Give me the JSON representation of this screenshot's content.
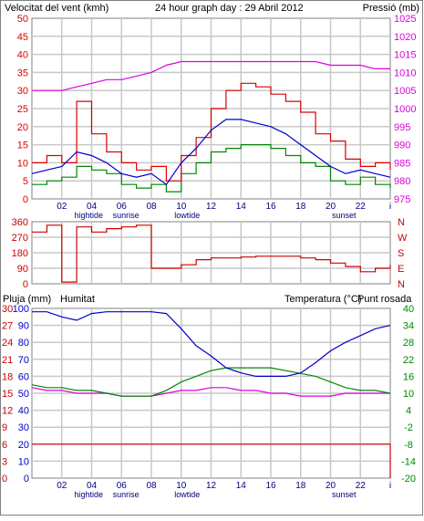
{
  "colors": {
    "wind": "#dd0000",
    "wind_avg": "#0000cc",
    "wind_min": "#008800",
    "pressure": "#dd00dd",
    "direction": "#cc0000",
    "humidity": "#0000cc",
    "temperature": "#008800",
    "dewpoint": "#dd00dd",
    "rain": "#cc0000",
    "grid": "#c8c8c8",
    "frame": "#808080"
  },
  "chart_data": [
    {
      "type": "line",
      "title": "24 hour graph day : 29 Abril 2012",
      "left_axis_label": "Velocitat del vent (kmh)",
      "right_axis_label": "Pressió (mb)",
      "ylim_left": [
        0,
        50
      ],
      "ylim_right": [
        975,
        1025
      ],
      "left_ticks": [
        "0",
        "5",
        "10",
        "15",
        "20",
        "25",
        "30",
        "35",
        "40",
        "45",
        "50"
      ],
      "right_ticks": [
        "975",
        "980",
        "985",
        "990",
        "995",
        "1000",
        "1005",
        "1010",
        "1015",
        "1020",
        "1025"
      ],
      "x_ticks": [
        "02",
        "04",
        "06",
        "08",
        "10",
        "12",
        "14",
        "16",
        "18",
        "20",
        "22",
        "i"
      ],
      "events": [
        {
          "label": "hightide",
          "hour": 3.8
        },
        {
          "label": "sunrise",
          "hour": 6.3
        },
        {
          "label": "lowtide",
          "hour": 10.4
        },
        {
          "label": "sunset",
          "hour": 20.9
        }
      ],
      "x_hours": [
        0,
        1,
        2,
        3,
        4,
        5,
        6,
        7,
        8,
        9,
        10,
        11,
        12,
        13,
        14,
        15,
        16,
        17,
        18,
        19,
        20,
        21,
        22,
        23,
        24
      ],
      "series": [
        {
          "key": "wind_gust",
          "values": [
            10,
            12,
            10,
            27,
            18,
            13,
            10,
            8,
            9,
            5,
            12,
            17,
            25,
            30,
            32,
            31,
            29,
            27,
            24,
            18,
            16,
            11,
            9,
            10,
            8
          ]
        },
        {
          "key": "wind_avg",
          "values": [
            7,
            8,
            9,
            13,
            12,
            10,
            7,
            6,
            7,
            4,
            10,
            14,
            19,
            22,
            22,
            21,
            20,
            18,
            15,
            12,
            9,
            7,
            8,
            7,
            6
          ]
        },
        {
          "key": "wind_min",
          "values": [
            4,
            5,
            6,
            9,
            8,
            7,
            4,
            3,
            4,
            2,
            7,
            10,
            13,
            14,
            15,
            15,
            14,
            12,
            10,
            9,
            5,
            4,
            6,
            4,
            3
          ]
        },
        {
          "key": "pressure",
          "values": [
            1005,
            1005,
            1005,
            1006,
            1007,
            1008,
            1008,
            1009,
            1010,
            1012,
            1013,
            1013,
            1013,
            1013,
            1013,
            1013,
            1013,
            1013,
            1013,
            1013,
            1012,
            1012,
            1012,
            1011,
            1011
          ]
        }
      ]
    },
    {
      "type": "line",
      "y_ticks": [
        "0",
        "90",
        "180",
        "270",
        "360"
      ],
      "right_labels": [
        "N",
        "W",
        "S",
        "E",
        "N"
      ],
      "ylim": [
        0,
        360
      ],
      "x_hours": [
        0,
        1,
        2,
        3,
        4,
        5,
        6,
        7,
        8,
        9,
        10,
        11,
        12,
        13,
        14,
        15,
        16,
        17,
        18,
        19,
        20,
        21,
        22,
        23,
        24
      ],
      "series": [
        {
          "key": "wind_direction",
          "values": [
            300,
            340,
            10,
            330,
            300,
            320,
            330,
            340,
            90,
            90,
            110,
            140,
            150,
            150,
            155,
            160,
            160,
            160,
            150,
            140,
            120,
            100,
            70,
            90,
            110
          ]
        }
      ]
    },
    {
      "type": "line",
      "left_axis_label_1": "Pluja (mm)",
      "left_axis_label_2": "Humitat",
      "right_axis_label_1": "Temperatura (°C)",
      "right_axis_label_2": "Punt rosada",
      "rain_ticks": [
        "0",
        "3",
        "6",
        "9",
        "12",
        "15",
        "18",
        "21",
        "24",
        "27",
        "30"
      ],
      "humidity_ticks": [
        "0",
        "10",
        "20",
        "30",
        "40",
        "50",
        "60",
        "70",
        "80",
        "90",
        "100"
      ],
      "temp_ticks": [
        "-20",
        "-14",
        "-8",
        "-2",
        "4",
        "10",
        "16",
        "22",
        "28",
        "34",
        "40"
      ],
      "ylim_rain": [
        0,
        30
      ],
      "ylim_humidity": [
        0,
        100
      ],
      "ylim_temp": [
        -20,
        40
      ],
      "x_ticks": [
        "02",
        "04",
        "06",
        "08",
        "10",
        "12",
        "14",
        "16",
        "18",
        "20",
        "22",
        "i"
      ],
      "events": [
        {
          "label": "hightide",
          "hour": 3.8
        },
        {
          "label": "sunrise",
          "hour": 6.3
        },
        {
          "label": "lowtide",
          "hour": 10.4
        },
        {
          "label": "sunset",
          "hour": 20.9
        }
      ],
      "x_hours": [
        0,
        1,
        2,
        3,
        4,
        5,
        6,
        7,
        8,
        9,
        10,
        11,
        12,
        13,
        14,
        15,
        16,
        17,
        18,
        19,
        20,
        21,
        22,
        23,
        24
      ],
      "series": [
        {
          "key": "humidity",
          "values": [
            98,
            98,
            95,
            93,
            97,
            98,
            98,
            98,
            98,
            97,
            88,
            78,
            72,
            65,
            62,
            60,
            60,
            60,
            62,
            68,
            75,
            80,
            84,
            88,
            90
          ]
        },
        {
          "key": "temperature",
          "values": [
            13,
            12,
            12,
            11,
            11,
            10,
            9,
            9,
            9,
            11,
            14,
            16,
            18,
            19,
            19,
            19,
            19,
            18,
            17,
            16,
            14,
            12,
            11,
            11,
            10
          ]
        },
        {
          "key": "dewpoint",
          "values": [
            12,
            11,
            11,
            10,
            10,
            10,
            9,
            9,
            9,
            10,
            11,
            11,
            12,
            12,
            11,
            11,
            10,
            10,
            9,
            9,
            9,
            10,
            10,
            10,
            10
          ]
        },
        {
          "key": "rain",
          "values": [
            6,
            6,
            6,
            6,
            6,
            6,
            6,
            6,
            6,
            6,
            6,
            6,
            6,
            6,
            6,
            6,
            6,
            6,
            6,
            6,
            6,
            6,
            6,
            6,
            0
          ]
        }
      ]
    }
  ]
}
